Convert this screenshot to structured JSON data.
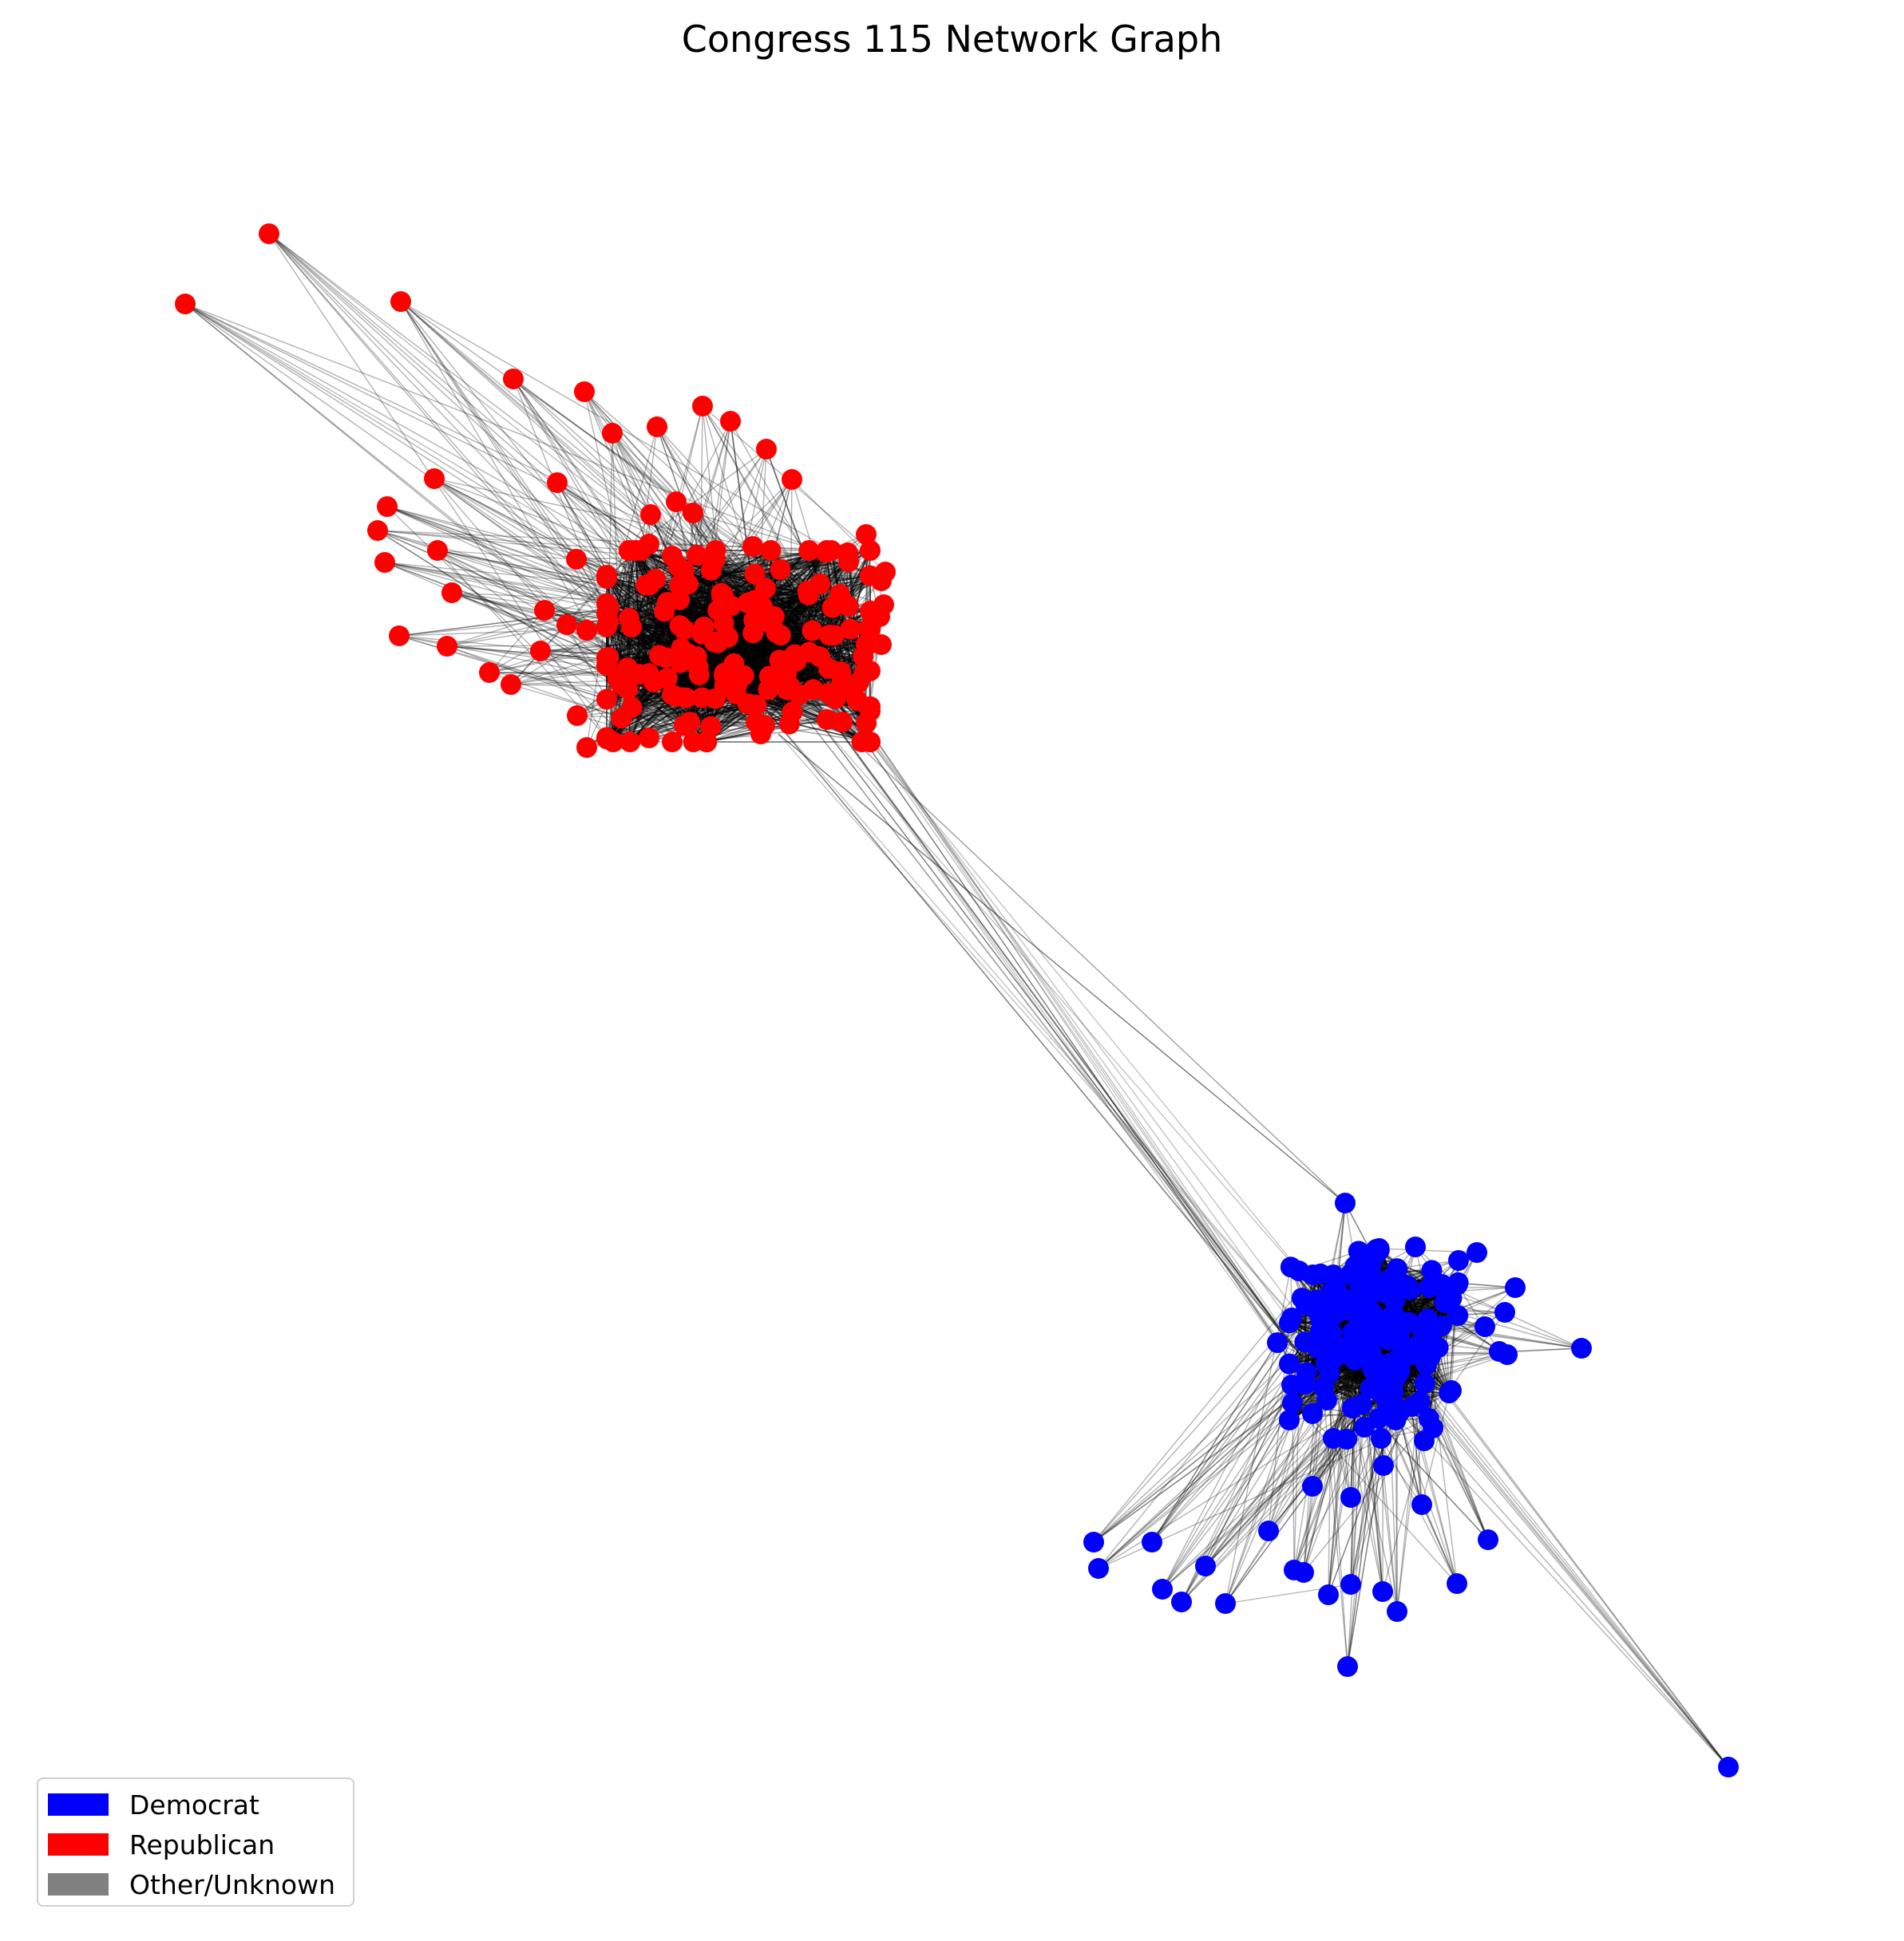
{
  "title": "Congress 115 Network Graph",
  "legend": {
    "items": [
      {
        "label": "Democrat",
        "color": "#0000ff"
      },
      {
        "label": "Republican",
        "color": "#ff0000"
      },
      {
        "label": "Other/Unknown",
        "color": "#808080"
      }
    ]
  },
  "colors": {
    "edge": "#000000",
    "background": "#ffffff"
  }
}
